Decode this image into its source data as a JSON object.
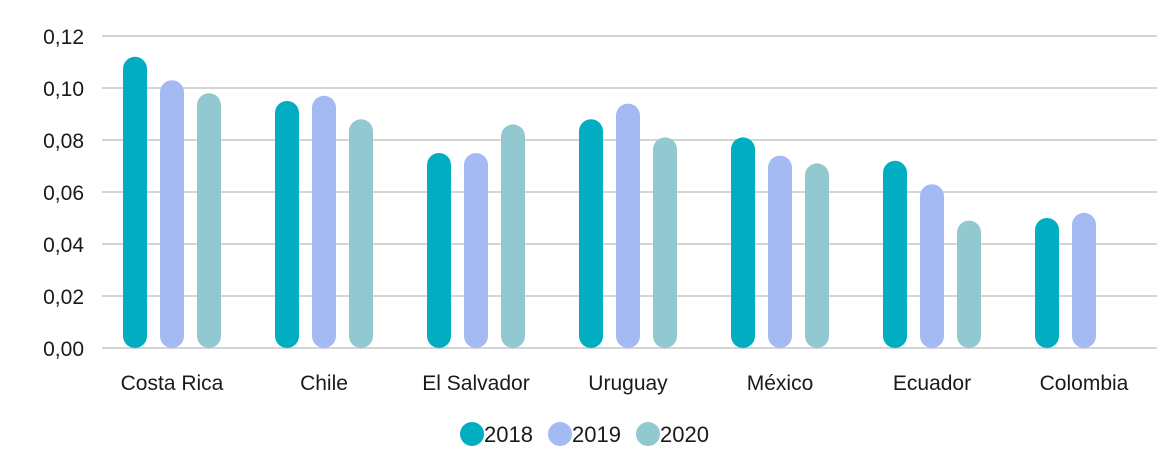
{
  "chart_data": {
    "type": "bar",
    "title": "",
    "xlabel": "",
    "ylabel": "",
    "ylim": [
      0,
      0.12
    ],
    "yticks": [
      "0,00",
      "0,02",
      "0,04",
      "0,06",
      "0,08",
      "0,10",
      "0,12"
    ],
    "ytick_values": [
      0,
      0.02,
      0.04,
      0.06,
      0.08,
      0.1,
      0.12
    ],
    "grid": "horizontal",
    "legend_position": "bottom",
    "categories": [
      "Costa Rica",
      "Chile",
      "El Salvador",
      "Uruguay",
      "México",
      "Ecuador",
      "Colombia"
    ],
    "series": [
      {
        "name": "2018",
        "color": "#00adc1",
        "values": [
          0.112,
          0.095,
          0.075,
          0.088,
          0.081,
          0.072,
          0.05
        ]
      },
      {
        "name": "2019",
        "color": "#a3baf3",
        "values": [
          0.103,
          0.097,
          0.075,
          0.094,
          0.074,
          0.063,
          0.052
        ]
      },
      {
        "name": "2020",
        "color": "#92c8d0",
        "values": [
          0.098,
          0.088,
          0.086,
          0.081,
          0.071,
          0.049,
          null
        ]
      }
    ]
  }
}
